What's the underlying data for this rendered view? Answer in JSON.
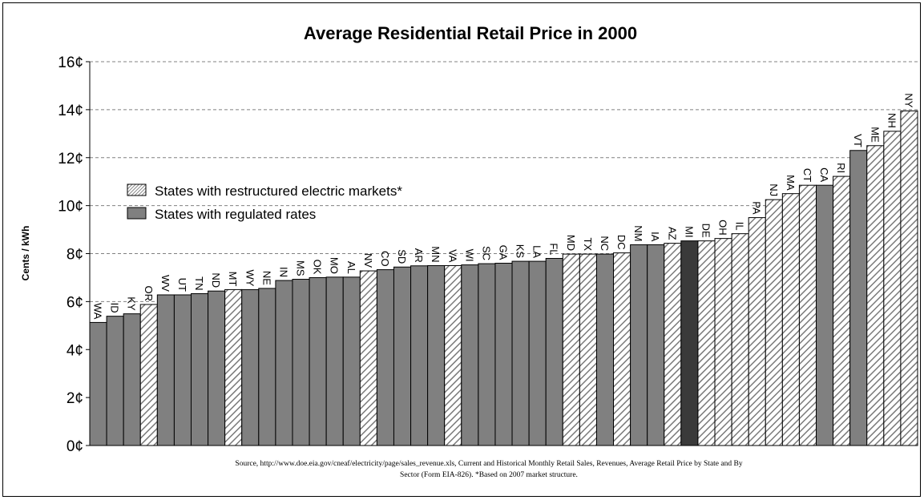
{
  "chart_data": {
    "type": "bar",
    "title": "Average Residential Retail Price in 2000",
    "xlabel": "",
    "ylabel": "Cents / kWh",
    "ylim": [
      0,
      16
    ],
    "yticks": [
      0,
      2,
      4,
      6,
      8,
      10,
      12,
      14,
      16
    ],
    "ytick_labels": [
      "0¢",
      "2¢",
      "4¢",
      "6¢",
      "8¢",
      "10¢",
      "12¢",
      "14¢",
      "16¢"
    ],
    "grid": "horizontal dashed",
    "legend_position": "upper-left",
    "legend": [
      {
        "label": "States with restructured electric markets*",
        "style": "hatched"
      },
      {
        "label": "States with regulated rates",
        "style": "solid-gray"
      }
    ],
    "categories": [
      "WA",
      "ID",
      "KY",
      "OR",
      "WV",
      "UT",
      "TN",
      "ND",
      "MT",
      "WY",
      "NE",
      "IN",
      "MS",
      "OK",
      "MO",
      "AL",
      "NV",
      "CO",
      "SD",
      "AR",
      "MN",
      "VA",
      "WI",
      "SC",
      "GA",
      "KS",
      "LA",
      "FL",
      "MD",
      "TX",
      "NC",
      "DC",
      "NM",
      "IA",
      "AZ",
      "MI",
      "DE",
      "OH",
      "IL",
      "PA",
      "NJ",
      "MA",
      "CT",
      "CA",
      "RI",
      "VT",
      "ME",
      "NH",
      "NY"
    ],
    "values": [
      5.13,
      5.39,
      5.49,
      5.88,
      6.28,
      6.28,
      6.33,
      6.44,
      6.5,
      6.5,
      6.55,
      6.88,
      6.93,
      7.0,
      7.02,
      7.02,
      7.28,
      7.33,
      7.44,
      7.49,
      7.5,
      7.5,
      7.53,
      7.58,
      7.6,
      7.68,
      7.68,
      7.8,
      7.98,
      7.98,
      7.98,
      8.03,
      8.37,
      8.37,
      8.43,
      8.53,
      8.53,
      8.63,
      8.83,
      9.5,
      10.25,
      10.5,
      10.85,
      10.85,
      11.22,
      12.3,
      12.5,
      13.1,
      13.95
    ],
    "restructured": [
      false,
      false,
      false,
      true,
      false,
      false,
      false,
      false,
      true,
      false,
      false,
      false,
      false,
      false,
      false,
      false,
      true,
      false,
      false,
      false,
      false,
      true,
      false,
      false,
      false,
      false,
      false,
      false,
      true,
      true,
      false,
      true,
      false,
      false,
      true,
      false,
      true,
      true,
      true,
      true,
      true,
      true,
      true,
      false,
      true,
      false,
      true,
      true,
      true
    ],
    "highlighted_category": "MI",
    "colors": {
      "regulated": "#808080",
      "highlight": "#3a3a3a",
      "hatch_stroke": "#7a7a7a",
      "hatch_background": "#ffffff",
      "grid": "#808080"
    }
  },
  "source_note": {
    "line1": "Source, http://www.doe.eia.gov/cneaf/electricity/page/sales_revenue.xls, Current and Historical Monthly Retail Sales, Revenues, Average Retail Price by State and By",
    "line2": "Sector (Form EIA-826). *Based on 2007 market structure."
  }
}
